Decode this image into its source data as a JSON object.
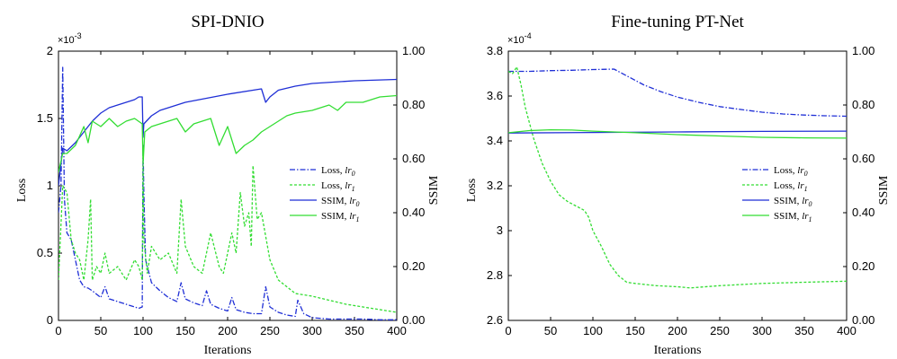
{
  "chart_data": [
    {
      "type": "line",
      "title": "SPI-DNIO",
      "xlabel": "Iterations",
      "ylabel": "Loss",
      "y2label": "SSIM",
      "xlim": [
        0,
        400
      ],
      "ylim": [
        0,
        2
      ],
      "y2lim": [
        0,
        1
      ],
      "xticks": [
        "0",
        "50",
        "100",
        "150",
        "200",
        "250",
        "300",
        "350",
        "400"
      ],
      "yticks": [
        "0",
        "0.5",
        "1",
        "1.5",
        "2"
      ],
      "y2ticks": [
        "0.00",
        "0.20",
        "0.40",
        "0.60",
        "0.80",
        "1.00"
      ],
      "y_multiplier": "×10",
      "y_exponent": "-3",
      "legend": [
        {
          "label": "Loss,",
          "sub": "lr",
          "idx": "0",
          "color": "#1f2fd6",
          "dash": "6,2,1.5,2"
        },
        {
          "label": "Loss,",
          "sub": "lr",
          "idx": "1",
          "color": "#33dd33",
          "dash": "3,2"
        },
        {
          "label": "SSIM,",
          "sub": "lr",
          "idx": "0",
          "color": "#1f2fd6",
          "dash": ""
        },
        {
          "label": "SSIM,",
          "sub": "lr",
          "idx": "1",
          "color": "#33dd33",
          "dash": ""
        }
      ],
      "series": [
        {
          "name": "Loss, lr0",
          "axis": "left",
          "color": "#1f2fd6",
          "dash": "6,2,1.5,2",
          "x": [
            0,
            3,
            5,
            7,
            10,
            15,
            20,
            25,
            30,
            35,
            40,
            50,
            55,
            60,
            70,
            80,
            90,
            95,
            99,
            100,
            101,
            103,
            110,
            120,
            130,
            140,
            145,
            150,
            160,
            170,
            175,
            180,
            190,
            200,
            205,
            210,
            220,
            230,
            240,
            245,
            250,
            260,
            270,
            280,
            283,
            290,
            300,
            320,
            340,
            360,
            380,
            400
          ],
          "y": [
            0.8,
            1.0,
            1.88,
            0.9,
            0.65,
            0.6,
            0.45,
            0.3,
            0.25,
            0.24,
            0.22,
            0.17,
            0.25,
            0.16,
            0.14,
            0.12,
            0.1,
            0.09,
            0.1,
            1.3,
            0.95,
            0.45,
            0.28,
            0.22,
            0.17,
            0.14,
            0.28,
            0.16,
            0.13,
            0.11,
            0.22,
            0.12,
            0.09,
            0.07,
            0.17,
            0.08,
            0.06,
            0.05,
            0.05,
            0.25,
            0.1,
            0.06,
            0.04,
            0.03,
            0.15,
            0.05,
            0.02,
            0.01,
            0.01,
            0.01,
            0.005,
            0.005
          ]
        },
        {
          "name": "Loss, lr1",
          "axis": "left",
          "color": "#33dd33",
          "dash": "3,2",
          "x": [
            0,
            5,
            10,
            15,
            20,
            25,
            30,
            35,
            38,
            40,
            45,
            50,
            55,
            60,
            70,
            80,
            90,
            95,
            99,
            100,
            101,
            105,
            110,
            120,
            130,
            140,
            145,
            150,
            160,
            170,
            180,
            190,
            195,
            200,
            205,
            210,
            215,
            220,
            225,
            228,
            230,
            235,
            240,
            250,
            260,
            270,
            280,
            300,
            320,
            340,
            360,
            380,
            400
          ],
          "y": [
            0.3,
            1.0,
            0.95,
            0.6,
            0.5,
            0.45,
            0.3,
            0.6,
            0.9,
            0.3,
            0.4,
            0.35,
            0.5,
            0.35,
            0.4,
            0.3,
            0.45,
            0.4,
            0.3,
            1.15,
            0.6,
            0.35,
            0.55,
            0.45,
            0.5,
            0.35,
            0.9,
            0.55,
            0.4,
            0.35,
            0.65,
            0.4,
            0.35,
            0.5,
            0.65,
            0.5,
            0.95,
            0.7,
            0.8,
            0.55,
            1.15,
            0.75,
            0.8,
            0.45,
            0.3,
            0.25,
            0.2,
            0.18,
            0.15,
            0.12,
            0.1,
            0.08,
            0.06
          ]
        },
        {
          "name": "SSIM, lr0",
          "axis": "right",
          "color": "#1f2fd6",
          "dash": "",
          "x": [
            0,
            5,
            10,
            20,
            30,
            40,
            50,
            60,
            70,
            80,
            90,
            95,
            99,
            100,
            101,
            110,
            120,
            150,
            200,
            240,
            245,
            250,
            260,
            280,
            300,
            350,
            400
          ],
          "y": [
            0.5,
            0.64,
            0.63,
            0.66,
            0.7,
            0.74,
            0.77,
            0.79,
            0.8,
            0.81,
            0.82,
            0.83,
            0.83,
            0.68,
            0.73,
            0.76,
            0.78,
            0.81,
            0.84,
            0.86,
            0.81,
            0.83,
            0.855,
            0.87,
            0.88,
            0.89,
            0.895
          ]
        },
        {
          "name": "SSIM, lr1",
          "axis": "right",
          "color": "#33dd33",
          "dash": "",
          "x": [
            0,
            5,
            10,
            20,
            30,
            35,
            40,
            50,
            60,
            70,
            80,
            90,
            99,
            100,
            102,
            110,
            120,
            140,
            150,
            160,
            180,
            190,
            200,
            210,
            220,
            230,
            240,
            250,
            260,
            270,
            280,
            300,
            320,
            330,
            340,
            360,
            380,
            400
          ],
          "y": [
            0.55,
            0.62,
            0.62,
            0.65,
            0.72,
            0.66,
            0.74,
            0.72,
            0.75,
            0.72,
            0.74,
            0.75,
            0.73,
            0.58,
            0.7,
            0.72,
            0.73,
            0.75,
            0.7,
            0.73,
            0.75,
            0.65,
            0.72,
            0.62,
            0.65,
            0.67,
            0.7,
            0.72,
            0.74,
            0.76,
            0.77,
            0.78,
            0.8,
            0.78,
            0.81,
            0.81,
            0.83,
            0.835
          ]
        }
      ]
    },
    {
      "type": "line",
      "title": "Fine-tuning PT-Net",
      "xlabel": "Iterations",
      "ylabel": "Loss",
      "y2label": "SSIM",
      "xlim": [
        0,
        400
      ],
      "ylim": [
        2.6,
        3.8
      ],
      "y2lim": [
        0,
        1
      ],
      "xticks": [
        "0",
        "50",
        "100",
        "150",
        "200",
        "250",
        "300",
        "350",
        "400"
      ],
      "yticks": [
        "2.6",
        "2.8",
        "3",
        "3.2",
        "3.4",
        "3.6",
        "3.8"
      ],
      "y2ticks": [
        "0.00",
        "0.20",
        "0.40",
        "0.60",
        "0.80",
        "1.00"
      ],
      "y_multiplier": "×10",
      "y_exponent": "-4",
      "legend": [
        {
          "label": "Loss,",
          "sub": "lr",
          "idx": "0",
          "color": "#1f2fd6",
          "dash": "6,2,1.5,2"
        },
        {
          "label": "Loss,",
          "sub": "lr",
          "idx": "1",
          "color": "#33dd33",
          "dash": "3,2"
        },
        {
          "label": "SSIM,",
          "sub": "lr",
          "idx": "0",
          "color": "#1f2fd6",
          "dash": ""
        },
        {
          "label": "SSIM,",
          "sub": "lr",
          "idx": "1",
          "color": "#33dd33",
          "dash": ""
        }
      ],
      "series": [
        {
          "name": "Loss, lr0",
          "axis": "left",
          "color": "#1f2fd6",
          "dash": "6,2,1.5,2",
          "x": [
            0,
            25,
            50,
            75,
            100,
            125,
            140,
            160,
            180,
            200,
            225,
            250,
            275,
            300,
            325,
            350,
            375,
            400
          ],
          "y": [
            3.71,
            3.71,
            3.713,
            3.715,
            3.718,
            3.72,
            3.69,
            3.65,
            3.62,
            3.595,
            3.572,
            3.553,
            3.54,
            3.528,
            3.52,
            3.515,
            3.512,
            3.51
          ]
        },
        {
          "name": "Loss, lr1",
          "axis": "left",
          "color": "#33dd33",
          "dash": "3,2",
          "x": [
            0,
            5,
            10,
            15,
            20,
            25,
            30,
            40,
            50,
            60,
            70,
            80,
            90,
            95,
            100,
            110,
            120,
            130,
            140,
            150,
            175,
            200,
            215,
            250,
            300,
            350,
            400
          ],
          "y": [
            3.71,
            3.7,
            3.73,
            3.65,
            3.55,
            3.48,
            3.41,
            3.3,
            3.22,
            3.16,
            3.13,
            3.11,
            3.09,
            3.06,
            3.0,
            2.93,
            2.85,
            2.8,
            2.77,
            2.765,
            2.755,
            2.75,
            2.745,
            2.755,
            2.765,
            2.77,
            2.775
          ]
        },
        {
          "name": "SSIM, lr0",
          "axis": "right",
          "color": "#1f2fd6",
          "dash": "",
          "x": [
            0,
            100,
            200,
            300,
            400
          ],
          "y": [
            0.696,
            0.698,
            0.7,
            0.702,
            0.703
          ]
        },
        {
          "name": "SSIM, lr1",
          "axis": "right",
          "color": "#33dd33",
          "dash": "",
          "x": [
            0,
            25,
            50,
            75,
            100,
            150,
            200,
            250,
            300,
            350,
            400
          ],
          "y": [
            0.697,
            0.705,
            0.708,
            0.707,
            0.703,
            0.697,
            0.69,
            0.685,
            0.68,
            0.678,
            0.677
          ]
        }
      ]
    }
  ]
}
